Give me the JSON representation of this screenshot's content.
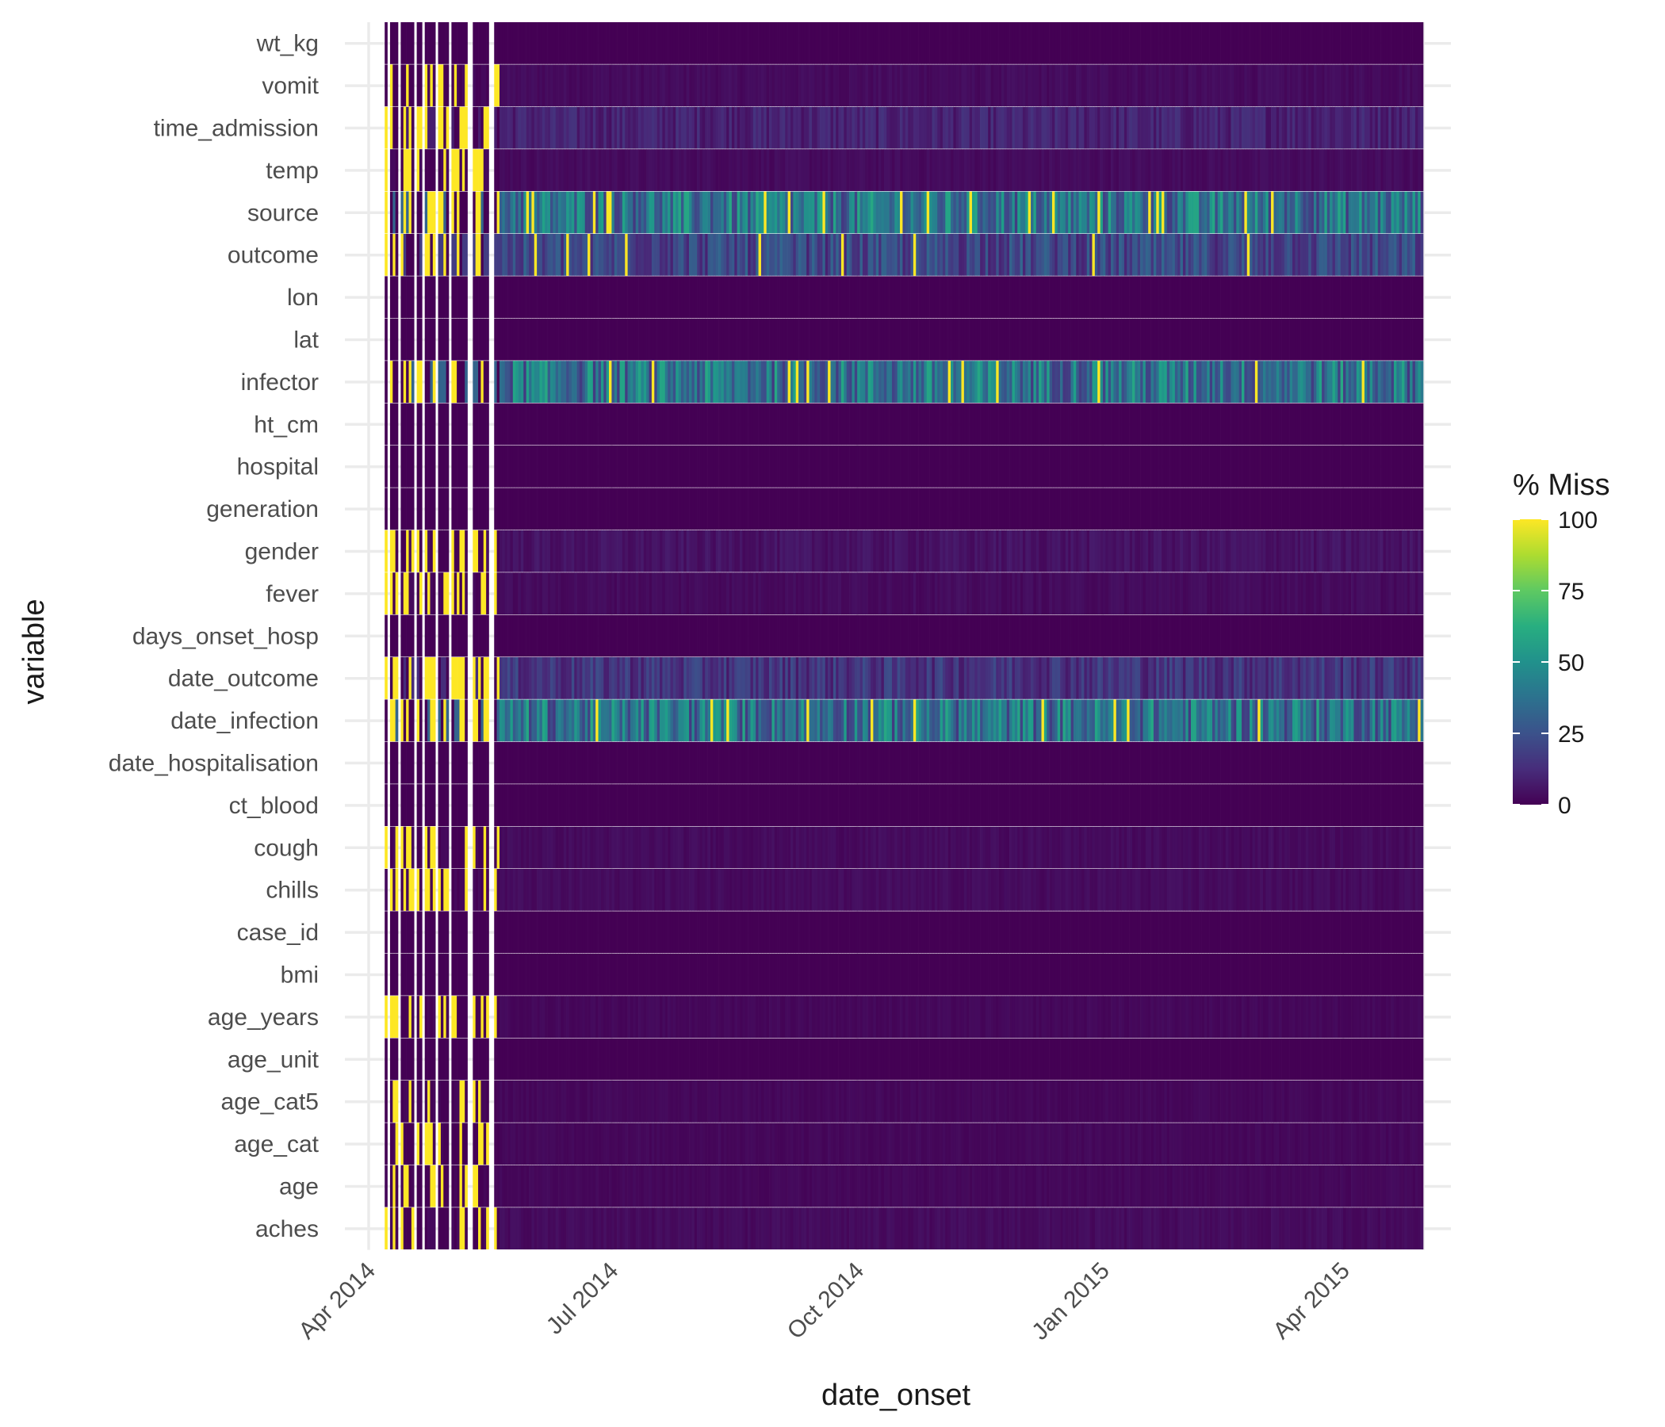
{
  "chart_data": {
    "type": "heatmap",
    "xlabel": "date_onset",
    "ylabel": "variable",
    "x_range": [
      "2014-04-01",
      "2015-05-01"
    ],
    "x_ticks": [
      {
        "date": "2014-04-01",
        "label": "Apr 2014"
      },
      {
        "date": "2014-07-01",
        "label": "Jul 2014"
      },
      {
        "date": "2014-10-01",
        "label": "Oct 2014"
      },
      {
        "date": "2015-01-01",
        "label": "Jan 2015"
      },
      {
        "date": "2015-04-01",
        "label": "Apr 2015"
      }
    ],
    "variables": [
      "wt_kg",
      "vomit",
      "time_admission",
      "temp",
      "source",
      "outcome",
      "lon",
      "lat",
      "infector",
      "ht_cm",
      "hospital",
      "generation",
      "gender",
      "fever",
      "days_onset_hosp",
      "date_outcome",
      "date_infection",
      "date_hospitalisation",
      "ct_blood",
      "cough",
      "chills",
      "case_id",
      "bmi",
      "age_years",
      "age_unit",
      "age_cat5",
      "age_cat",
      "age",
      "aches"
    ],
    "bin": "day",
    "bin_range": [
      "2014-04-07",
      "2015-04-30"
    ],
    "colorscale": "viridis",
    "legend": {
      "title": "% Miss",
      "position": "right",
      "ticks": [
        0,
        25,
        50,
        75,
        100
      ],
      "range": [
        0,
        100
      ]
    },
    "variable_missing_pct": {
      "wt_kg": 0,
      "vomit": 3,
      "time_admission": 10,
      "temp": 3,
      "source": 40,
      "outcome": 22,
      "lon": 0,
      "lat": 0,
      "infector": 40,
      "ht_cm": 0,
      "hospital": 0,
      "generation": 0,
      "gender": 5,
      "fever": 3,
      "days_onset_hosp": 0,
      "date_outcome": 16,
      "date_infection": 40,
      "date_hospitalisation": 0,
      "ct_blood": 0,
      "cough": 3,
      "chills": 3,
      "case_id": 0,
      "bmi": 0,
      "age_years": 2,
      "age_unit": 0,
      "age_cat5": 2,
      "age_cat": 2,
      "age": 2,
      "aches": 3
    },
    "grid": true
  }
}
